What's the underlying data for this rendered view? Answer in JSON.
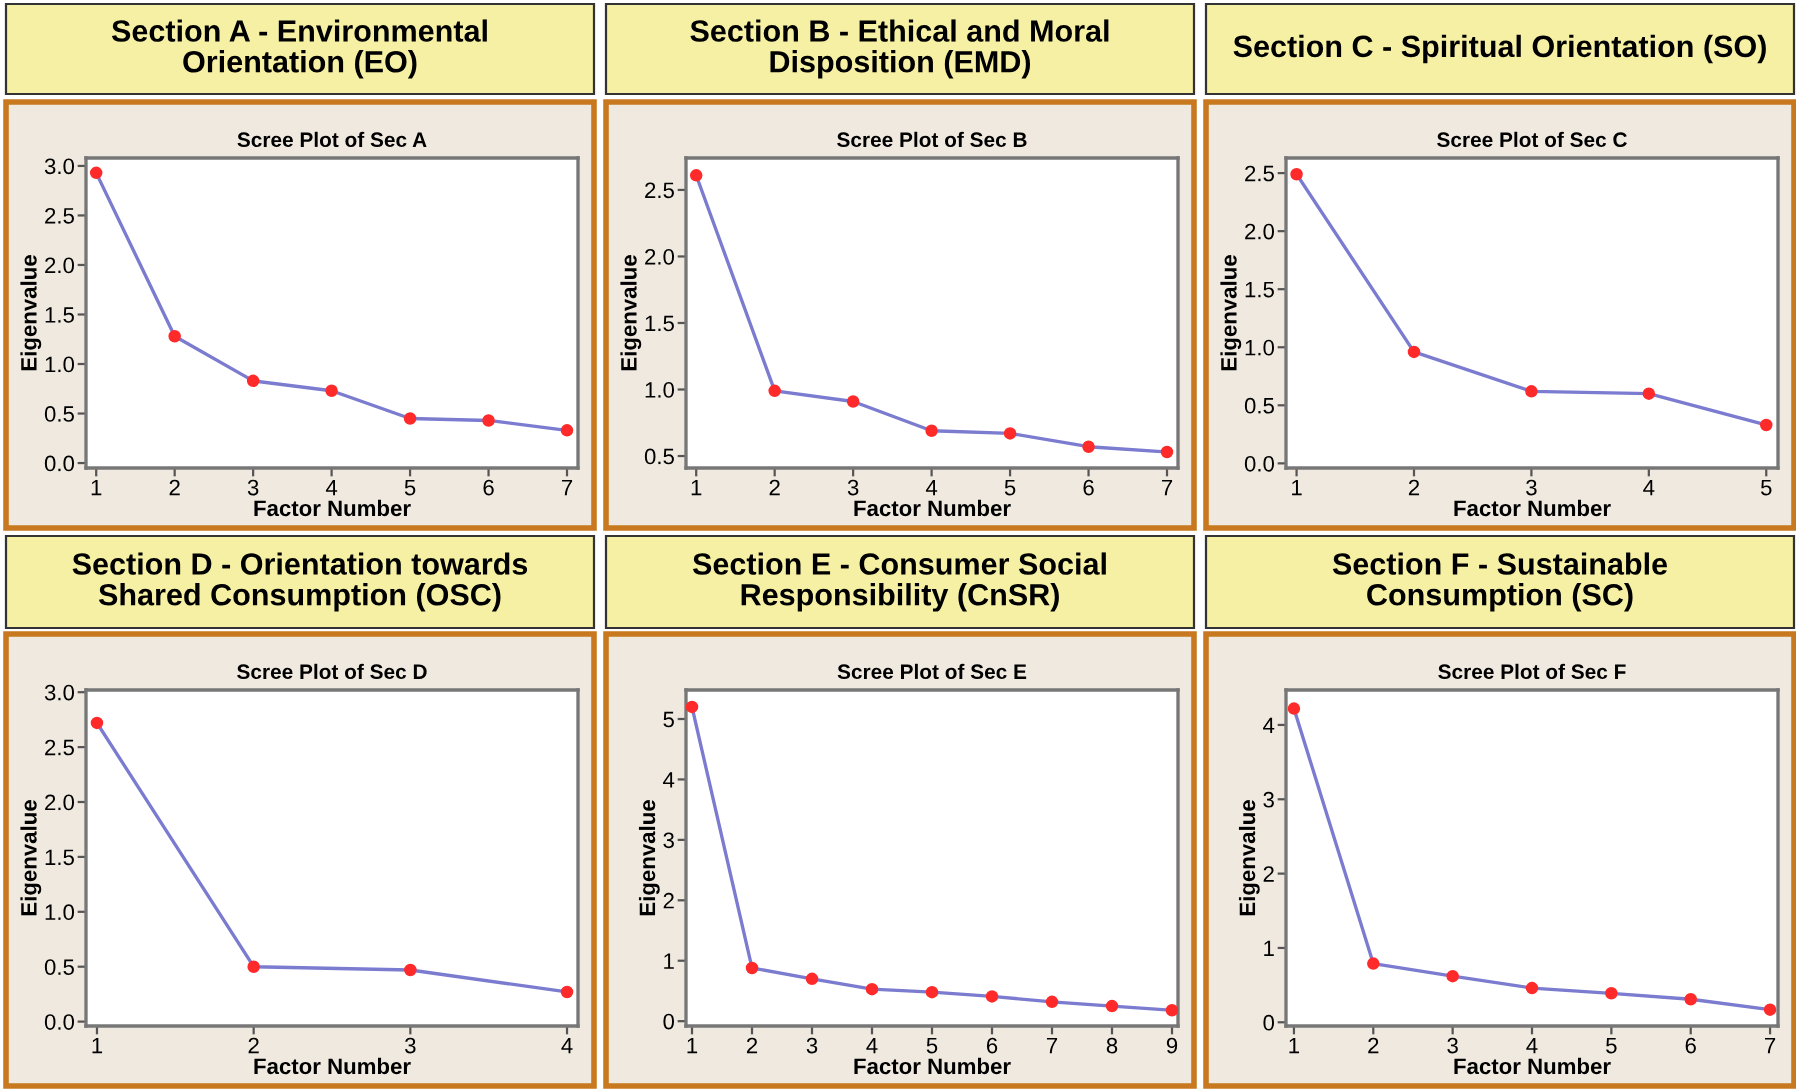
{
  "chart_data": [
    {
      "type": "line",
      "title": "Section A - Environmental Orientation (EO)",
      "subtitle": "Scree Plot of Sec A",
      "xlabel": "Factor Number",
      "ylabel": "Eigenvalue",
      "x": [
        1,
        2,
        3,
        4,
        5,
        6,
        7
      ],
      "series": [
        {
          "color": "#7b7bd0",
          "values": [
            2.93,
            1.28,
            0.83,
            0.73,
            0.45,
            0.43,
            0.33
          ]
        }
      ],
      "xlim": [
        0.87,
        7.14
      ],
      "xticks": [
        1,
        2,
        3,
        4,
        5,
        6,
        7
      ],
      "ylim": [
        -0.05,
        3.08
      ],
      "yticks": [
        {
          "value": 0,
          "label": "0.0"
        },
        0.5,
        {
          "value": 1,
          "label": "1.0"
        },
        1.5,
        {
          "value": 2,
          "label": "2.0"
        },
        2.5,
        {
          "value": 3,
          "label": "3.0"
        }
      ],
      "marker": "circle",
      "line_style": "solid",
      "grid": false
    },
    {
      "type": "line",
      "title": "Section B - Ethical and Moral Disposition (EMD)",
      "subtitle": "Scree Plot of Sec B",
      "xlabel": "Factor Number",
      "ylabel": "Eigenvalue",
      "x": [
        1,
        2,
        3,
        4,
        5,
        6,
        7
      ],
      "series": [
        {
          "color": "#7b7bd0",
          "values": [
            2.61,
            0.99,
            0.91,
            0.69,
            0.67,
            0.57,
            0.53
          ]
        }
      ],
      "xlim": [
        0.87,
        7.14
      ],
      "xticks": [
        1,
        2,
        3,
        4,
        5,
        6,
        7
      ],
      "ylim": [
        0.41,
        2.74
      ],
      "yticks": [
        0.5,
        {
          "value": 1,
          "label": "1.0"
        },
        1.5,
        {
          "value": 2,
          "label": "2.0"
        },
        2.5
      ],
      "marker": "circle",
      "line_style": "solid",
      "grid": false
    },
    {
      "type": "line",
      "title": "Section C - Spiritual Orientation (SO)",
      "subtitle": "Scree Plot of Sec C",
      "xlabel": "Factor Number",
      "ylabel": "Eigenvalue",
      "x": [
        1,
        2,
        3,
        4,
        5
      ],
      "series": [
        {
          "color": "#7b7bd0",
          "values": [
            2.49,
            0.96,
            0.62,
            0.6,
            0.33
          ]
        }
      ],
      "xlim": [
        0.91,
        5.1
      ],
      "xticks": [
        1,
        2,
        3,
        4,
        5
      ],
      "ylim": [
        -0.04,
        2.63
      ],
      "yticks": [
        {
          "value": 0,
          "label": "0.0"
        },
        0.5,
        {
          "value": 1,
          "label": "1.0"
        },
        1.5,
        {
          "value": 2,
          "label": "2.0"
        },
        2.5
      ],
      "marker": "circle",
      "line_style": "solid",
      "grid": false
    },
    {
      "type": "line",
      "title": "Section D - Orientation towards Shared Consumption (OSC)",
      "subtitle": "Scree Plot of Sec D",
      "xlabel": "Factor Number",
      "ylabel": "Eigenvalue",
      "x": [
        1,
        2,
        3,
        4
      ],
      "series": [
        {
          "color": "#7b7bd0",
          "values": [
            2.72,
            0.5,
            0.47,
            0.27
          ]
        }
      ],
      "xlim": [
        0.93,
        4.07
      ],
      "xticks": [
        1,
        2,
        3,
        4
      ],
      "ylim": [
        -0.04,
        3.02
      ],
      "yticks": [
        {
          "value": 0,
          "label": "0.0"
        },
        0.5,
        {
          "value": 1,
          "label": "1.0"
        },
        1.5,
        {
          "value": 2,
          "label": "2.0"
        },
        2.5,
        {
          "value": 3,
          "label": "3.0"
        }
      ],
      "marker": "circle",
      "line_style": "solid",
      "grid": false
    },
    {
      "type": "line",
      "title": "Section E - Consumer Social Responsibility (CnSR)",
      "subtitle": "Scree Plot of Sec E",
      "xlabel": "Factor Number",
      "ylabel": "Eigenvalue",
      "x": [
        1,
        2,
        3,
        4,
        5,
        6,
        7,
        8,
        9
      ],
      "series": [
        {
          "color": "#7b7bd0",
          "values": [
            5.2,
            0.88,
            0.7,
            0.53,
            0.48,
            0.41,
            0.32,
            0.25,
            0.18
          ]
        }
      ],
      "xlim": [
        0.9,
        9.1
      ],
      "xticks": [
        1,
        2,
        3,
        4,
        5,
        6,
        7,
        8,
        9
      ],
      "ylim": [
        -0.08,
        5.48
      ],
      "yticks": [
        0,
        1,
        2,
        3,
        4,
        5
      ],
      "marker": "circle",
      "line_style": "solid",
      "grid": false
    },
    {
      "type": "line",
      "title": "Section F - Sustainable Consumption (SC)",
      "subtitle": "Scree Plot of Sec F",
      "xlabel": "Factor Number",
      "ylabel": "Eigenvalue",
      "x": [
        1,
        2,
        3,
        4,
        5,
        6,
        7
      ],
      "series": [
        {
          "color": "#7b7bd0",
          "values": [
            4.22,
            0.79,
            0.62,
            0.46,
            0.39,
            0.31,
            0.17
          ]
        }
      ],
      "xlim": [
        0.9,
        7.1
      ],
      "xticks": [
        1,
        2,
        3,
        4,
        5,
        6,
        7
      ],
      "ylim": [
        -0.05,
        4.47
      ],
      "yticks": [
        0,
        1,
        2,
        3,
        4
      ],
      "marker": "circle",
      "line_style": "solid",
      "grid": false
    }
  ]
}
